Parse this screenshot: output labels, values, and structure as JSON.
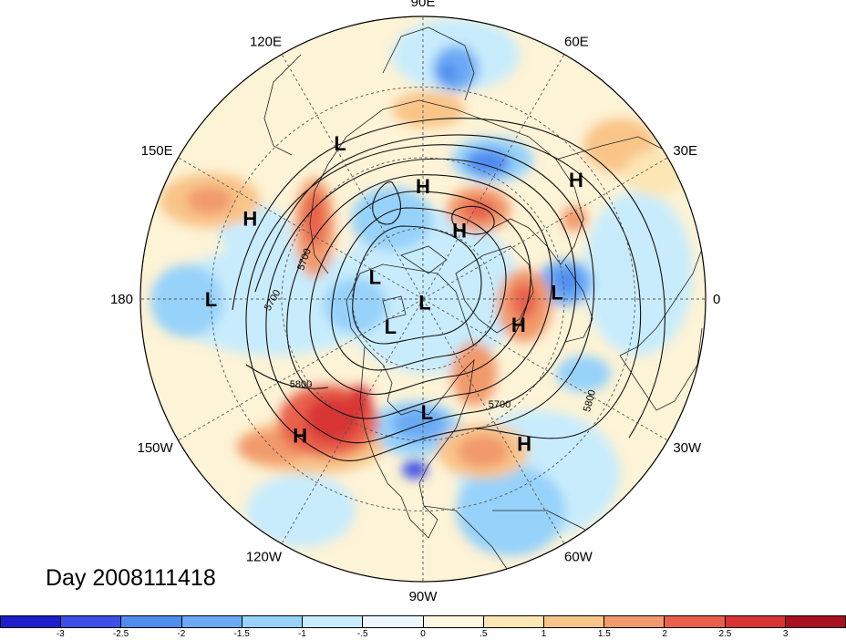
{
  "map": {
    "projection": "north-polar-stereographic",
    "longitude_labels": [
      {
        "text": "90E",
        "lon": 90
      },
      {
        "text": "60E",
        "lon": 60
      },
      {
        "text": "30E",
        "lon": 30
      },
      {
        "text": "0",
        "lon": 0
      },
      {
        "text": "30W",
        "lon": -30
      },
      {
        "text": "60W",
        "lon": -60
      },
      {
        "text": "90W",
        "lon": -90
      },
      {
        "text": "120W",
        "lon": -120
      },
      {
        "text": "150W",
        "lon": -150
      },
      {
        "text": "180",
        "lon": 180
      },
      {
        "text": "150E",
        "lon": 150
      },
      {
        "text": "120E",
        "lon": 120
      }
    ],
    "pressure_centers": [
      {
        "type": "H",
        "lon": 90,
        "lat": 58
      },
      {
        "type": "L",
        "lon": 118,
        "lat": 40
      },
      {
        "type": "H",
        "lon": 38,
        "lat": 35
      },
      {
        "type": "H",
        "lon": 62,
        "lat": 68
      },
      {
        "type": "H",
        "lon": 155,
        "lat": 36
      },
      {
        "type": "L",
        "lon": 180,
        "lat": 30
      },
      {
        "type": "L",
        "lon": 155,
        "lat": 75
      },
      {
        "type": "L",
        "lon": -60,
        "lat": 89
      },
      {
        "type": "L",
        "lon": 3,
        "lat": 52
      },
      {
        "type": "H",
        "lon": -15,
        "lat": 62
      },
      {
        "type": "L",
        "lon": -140,
        "lat": 78
      },
      {
        "type": "L",
        "lon": -88,
        "lat": 58
      },
      {
        "type": "H",
        "lon": -132,
        "lat": 38
      },
      {
        "type": "H",
        "lon": -55,
        "lat": 40
      }
    ],
    "contour_labels": [
      "5700",
      "5700",
      "5800",
      "5700",
      "5800"
    ],
    "colors": {
      "neg3": "#1e1ecc",
      "neg25": "#3c50e6",
      "neg2": "#4f8cf0",
      "neg15": "#6aaaf5",
      "neg1": "#96d2fa",
      "neg05": "#c8ecfc",
      "zero_neg": "#ecf8fd",
      "zero_pos": "#fdf8e0",
      "pos05": "#fce6b4",
      "pos1": "#f9c488",
      "pos15": "#f19a6c",
      "pos2": "#e8604c",
      "pos25": "#d83434",
      "pos3": "#a8101e"
    }
  },
  "title": {
    "day_text": "Day 2008111418"
  },
  "colorbar": {
    "colors": [
      "#1e1ecc",
      "#3c50e6",
      "#4f8cf0",
      "#6aaaf5",
      "#96d2fa",
      "#c8ecfc",
      "#ecf8fd",
      "#fdf8e0",
      "#fce6b4",
      "#f9c488",
      "#f19a6c",
      "#e8604c",
      "#d83434",
      "#a8101e"
    ],
    "ticks": [
      "-3",
      "-2.5",
      "-2",
      "-1.5",
      "-1",
      "-.5",
      "0",
      ".5",
      "1",
      "1.5",
      "2",
      "2.5",
      "3"
    ]
  }
}
